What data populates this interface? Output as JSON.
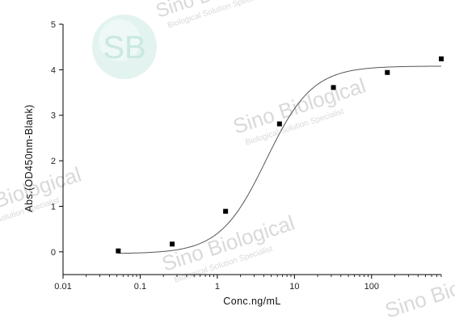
{
  "chart_data": {
    "type": "scatter",
    "x_scale": "log",
    "xlim": [
      0.01,
      800
    ],
    "ylim": [
      -0.5,
      5
    ],
    "x_ticks": [
      0.01,
      0.1,
      1,
      10,
      100
    ],
    "x_tick_labels": [
      "0.01",
      "0.1",
      "1",
      "10",
      "100"
    ],
    "y_ticks": [
      0,
      1,
      2,
      3,
      4,
      5
    ],
    "y_tick_labels": [
      "0",
      "1",
      "2",
      "3",
      "4",
      "5"
    ],
    "xlabel": "Conc.ng/mL",
    "ylabel": "Abs.(OD450nm-Blank)",
    "grid": false,
    "series": [
      {
        "points": [
          {
            "x": 0.052,
            "y": 0.02
          },
          {
            "x": 0.26,
            "y": 0.17
          },
          {
            "x": 1.28,
            "y": 0.89
          },
          {
            "x": 6.4,
            "y": 2.81
          },
          {
            "x": 32,
            "y": 3.61
          },
          {
            "x": 160,
            "y": 3.94
          },
          {
            "x": 800,
            "y": 4.24
          }
        ],
        "marker": "square",
        "color": "#000000"
      }
    ],
    "fit_curve": {
      "model": "4PL",
      "A1": -0.04,
      "A2": 4.08,
      "x0": 4.3,
      "p": 1.45,
      "color": "#555555"
    }
  },
  "watermark": {
    "logo_text": "SB",
    "brand": "Sino Biological",
    "tagline": "Biological Solution Specialist",
    "color": "#d9d9d9"
  }
}
